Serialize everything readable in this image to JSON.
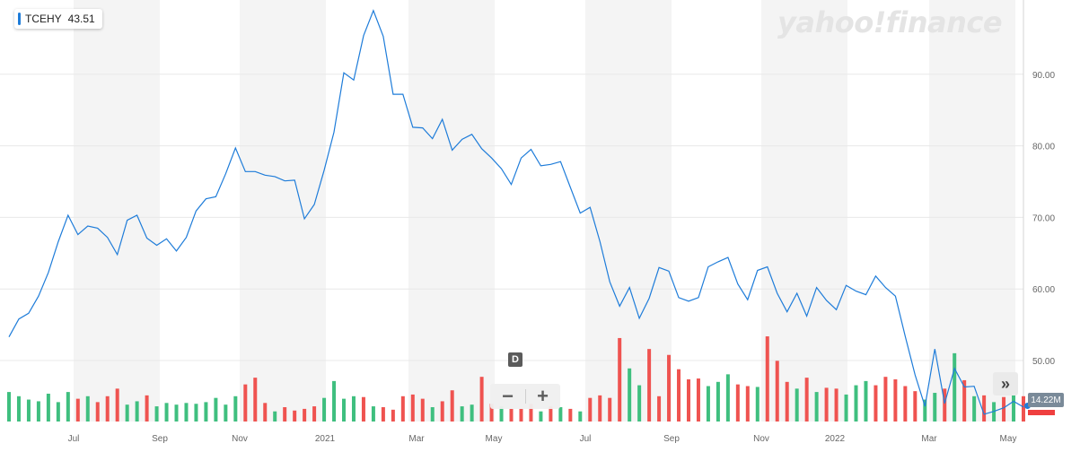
{
  "ticker": {
    "symbol": "TCEHY",
    "price": "43.51",
    "color": "#1e7cd9"
  },
  "brand": {
    "name": "yahoo",
    "slash": "!",
    "product": "finance"
  },
  "interval": {
    "label": "D"
  },
  "zoom": {
    "minus": "−",
    "plus": "+"
  },
  "scroll": {
    "label": "»"
  },
  "volume_readout": "14.22M",
  "colors": {
    "line": "#1e7cd9",
    "up": "#3fbf7f",
    "down": "#ef5350",
    "band": "#f4f4f4",
    "grid": "#e8e8e8"
  },
  "chart_data": {
    "type": "line",
    "ylim": [
      40,
      100
    ],
    "y_ticks": [
      "90.00",
      "80.00",
      "70.00",
      "60.00",
      "50.00"
    ],
    "x_ticks": [
      "Jul",
      "Sep",
      "Nov",
      "2021",
      "Mar",
      "May",
      "Jul",
      "Sep",
      "Nov",
      "2022",
      "Mar",
      "May"
    ],
    "grid": true,
    "price": [
      53.3,
      55.8,
      56.6,
      59.0,
      62.3,
      66.6,
      70.3,
      67.6,
      68.8,
      68.5,
      67.2,
      64.8,
      69.6,
      70.3,
      67.1,
      66.1,
      67.0,
      65.3,
      67.2,
      70.9,
      72.6,
      72.9,
      76.1,
      79.7,
      76.4,
      76.4,
      75.9,
      75.7,
      75.1,
      75.2,
      69.8,
      71.8,
      76.6,
      81.9,
      90.2,
      89.2,
      95.4,
      98.9,
      95.3,
      87.2,
      87.2,
      82.6,
      82.5,
      81.0,
      83.7,
      79.4,
      80.9,
      81.6,
      79.6,
      78.3,
      76.8,
      74.6,
      78.3,
      79.5,
      77.2,
      77.4,
      77.8,
      74.2,
      70.6,
      71.4,
      66.6,
      61.0,
      57.6,
      60.2,
      55.9,
      58.7,
      63.0,
      62.5,
      58.8,
      58.3,
      58.8,
      63.1,
      63.8,
      64.4,
      60.7,
      58.5,
      62.6,
      63.1,
      59.4,
      56.8,
      59.4,
      56.2,
      60.2,
      58.4,
      57.1,
      60.5,
      59.7,
      59.2,
      61.8,
      60.2,
      59.0,
      53.4,
      48.0,
      43.6,
      51.6,
      44.0,
      48.9,
      46.3,
      46.4,
      42.5,
      42.9,
      43.4,
      44.3,
      43.5
    ],
    "volume": [
      3.5,
      3.0,
      2.6,
      2.4,
      3.3,
      2.3,
      3.5,
      2.7,
      3.0,
      2.3,
      3.0,
      3.9,
      2.0,
      2.4,
      3.1,
      1.8,
      2.2,
      2.0,
      2.2,
      2.1,
      2.3,
      2.8,
      2.0,
      3.0,
      4.4,
      5.2,
      2.2,
      1.2,
      1.7,
      1.3,
      1.5,
      1.8,
      2.8,
      4.8,
      2.7,
      3.0,
      2.9,
      1.8,
      1.7,
      1.4,
      3.0,
      3.2,
      2.7,
      1.7,
      2.4,
      3.7,
      1.8,
      2.0,
      5.3,
      2.1,
      1.8,
      1.5,
      1.5,
      2.1,
      1.2,
      1.8,
      1.7,
      1.5,
      1.2,
      2.8,
      3.1,
      2.8,
      9.9,
      6.3,
      4.3,
      8.6,
      3.0,
      7.9,
      6.2,
      5.0,
      5.1,
      4.2,
      4.7,
      5.6,
      4.4,
      4.2,
      4.1,
      10.1,
      7.2,
      4.7,
      3.9,
      5.2,
      3.5,
      4.0,
      3.9,
      3.2,
      4.3,
      4.8,
      4.3,
      5.3,
      5.0,
      4.2,
      3.6,
      2.6,
      3.4,
      3.9,
      8.1,
      4.9,
      3.0,
      3.1,
      2.3,
      2.9,
      3.3,
      3.0
    ],
    "volume_up": [
      true,
      true,
      true,
      true,
      true,
      true,
      true,
      false,
      true,
      false,
      false,
      false,
      true,
      true,
      false,
      true,
      true,
      true,
      true,
      true,
      true,
      true,
      true,
      true,
      false,
      false,
      false,
      true,
      false,
      false,
      false,
      false,
      true,
      true,
      true,
      true,
      false,
      true,
      false,
      false,
      false,
      false,
      false,
      true,
      false,
      false,
      true,
      true,
      false,
      false,
      true,
      false,
      false,
      false,
      true,
      false,
      true,
      false,
      true,
      false,
      false,
      false,
      false,
      true,
      true,
      false,
      false,
      false,
      false,
      false,
      false,
      true,
      true,
      true,
      false,
      false,
      true,
      false,
      false,
      false,
      true,
      false,
      true,
      false,
      false,
      true,
      true,
      true,
      false,
      false,
      false,
      false,
      false,
      true,
      true,
      false,
      true,
      false,
      true,
      false,
      true,
      false,
      true,
      false
    ]
  }
}
